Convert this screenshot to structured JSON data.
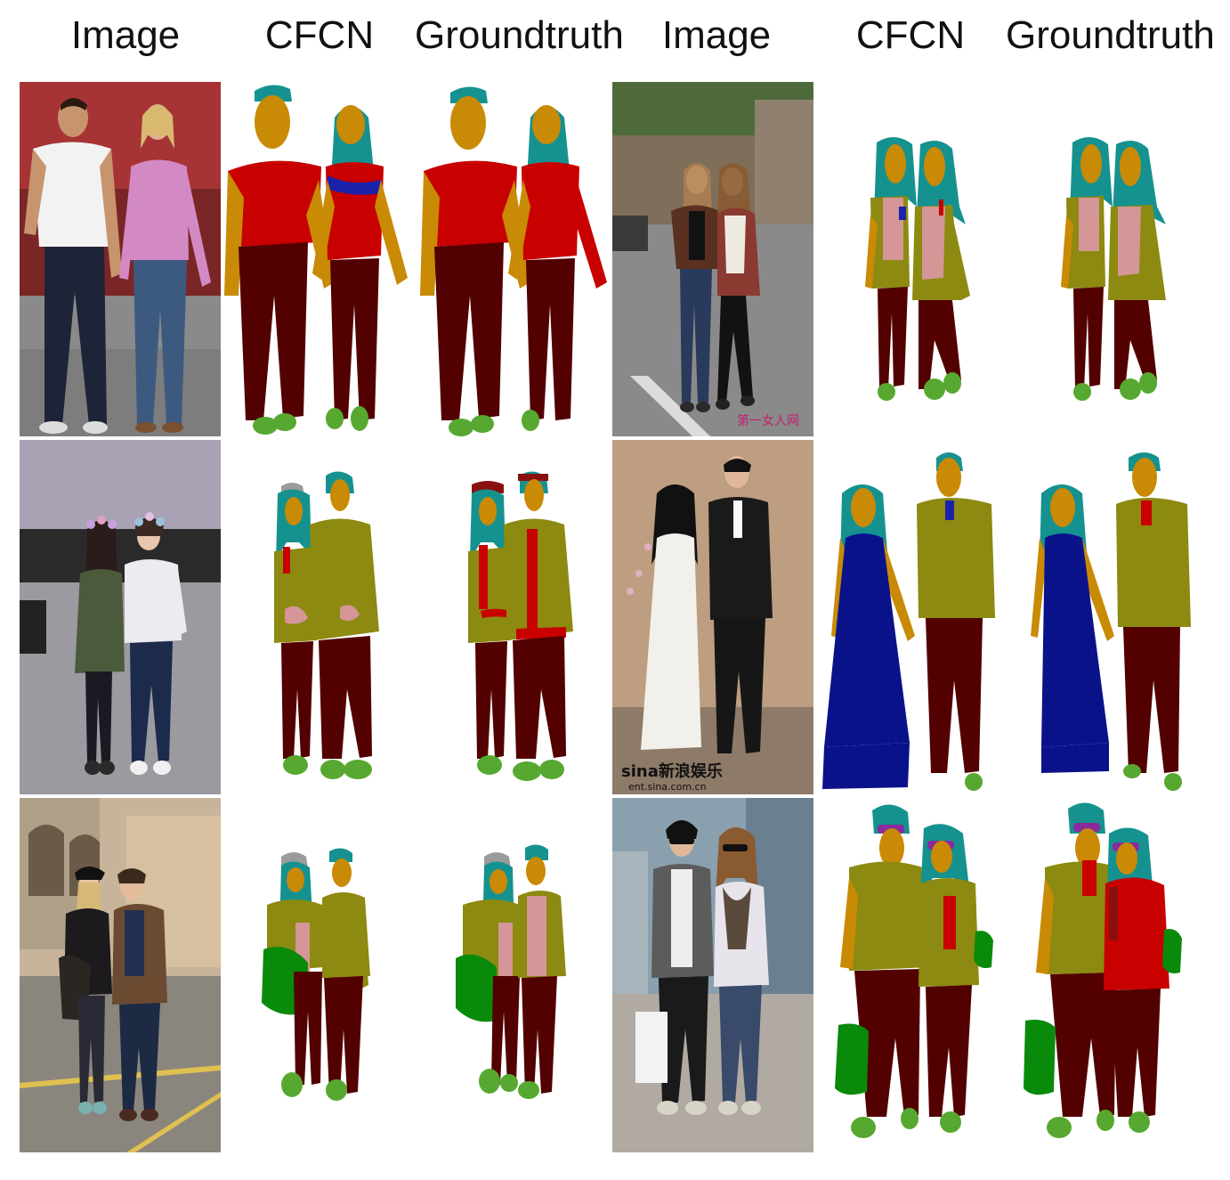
{
  "headers": [
    "Image",
    "CFCN",
    "Groundtruth",
    "Image",
    "CFCN",
    "Groundtruth"
  ],
  "watermarks": [
    "第一女人网",
    "sina新浪娱乐",
    "ent.sina.com.cn"
  ],
  "palette": {
    "hair": "#15928f",
    "face_skin": "#c98a06",
    "upper_clothes": "#c80000",
    "pants": "#520000",
    "shoes": "#57a830",
    "coat": "#8c8a10",
    "dress": "#0a128a",
    "scarf": "#d49696",
    "bag": "#0a8a0a",
    "hat": "#9b9b9b",
    "sunglasses": "#8a2a9e",
    "collar": "#1a22aa"
  }
}
